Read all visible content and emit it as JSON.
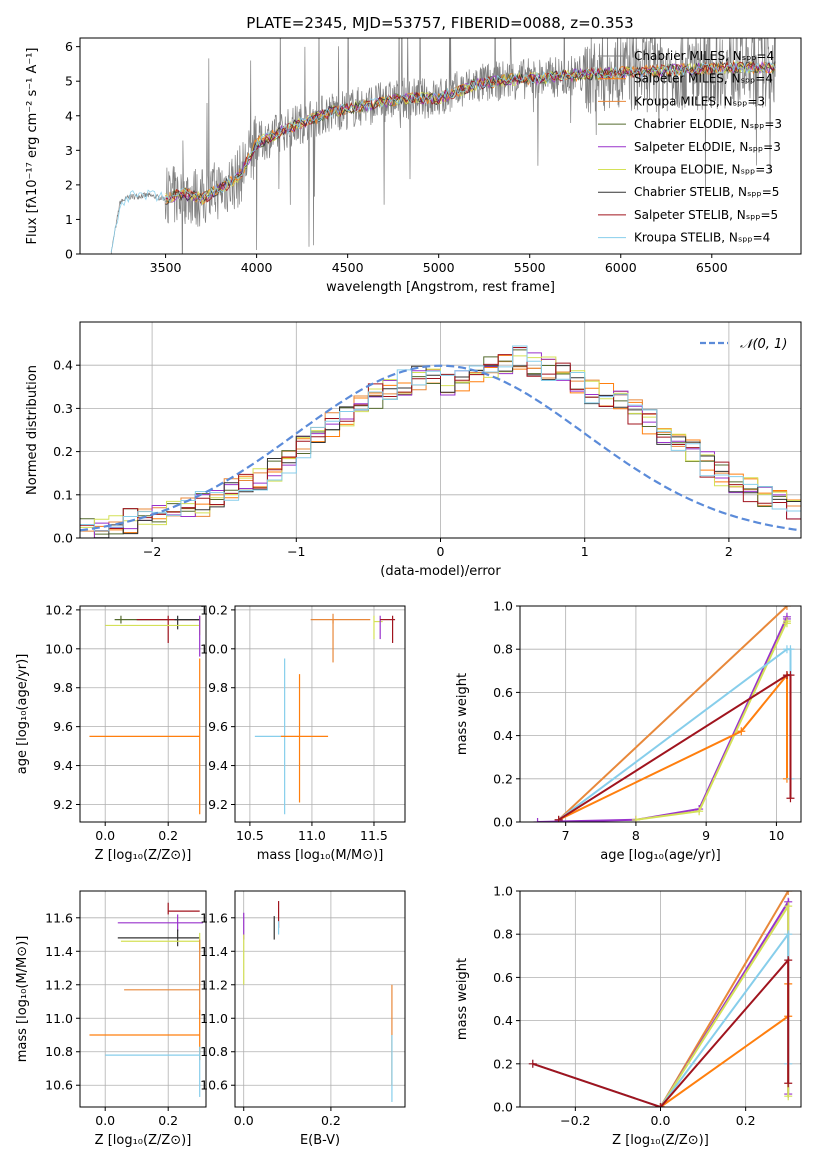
{
  "figure_title": "PLATE=2345, MJD=53757, FIBERID=0088, z=0.353",
  "series_colors": [
    "#808080",
    "#ff7f0e",
    "#e8883a",
    "#556b2f",
    "#9932cc",
    "#d4e157",
    "#333333",
    "#a0141e",
    "#87ceeb"
  ],
  "chart_data": [
    {
      "id": "spectrum",
      "type": "line",
      "xlabel": "wavelength [Angstrom, rest frame]",
      "ylabel": "Flux [fλ10⁻¹⁷ erg cm⁻² s⁻¹ A⁻¹]",
      "xlim": [
        3030,
        6990
      ],
      "ylim": [
        0,
        6.25
      ],
      "xticks": [
        3500,
        4000,
        4500,
        5000,
        5500,
        6000,
        6500
      ],
      "yticks": [
        0,
        1,
        2,
        3,
        4,
        5,
        6
      ],
      "grid": false,
      "legend": "top-right",
      "data_continuum_x": [
        3200,
        3250,
        3300,
        3400,
        3500,
        3600,
        3700,
        3800,
        3900,
        4000,
        4200,
        4400,
        4600,
        4800,
        5000,
        5200,
        5400,
        5600,
        5800,
        6000,
        6200,
        6400,
        6600,
        6800
      ],
      "data_continuum_y": [
        0,
        1.5,
        1.65,
        1.7,
        1.6,
        1.75,
        1.6,
        1.9,
        2.2,
        3.2,
        3.7,
        4.1,
        4.3,
        4.5,
        4.5,
        4.9,
        5.05,
        5.1,
        5.2,
        5.25,
        5.3,
        5.35,
        5.4,
        5.4
      ],
      "series": [
        {
          "name": "Chabrier MILES, Nₛₚₚ=4"
        },
        {
          "name": "Salpeter MILES, Nₛₚₚ=4"
        },
        {
          "name": "Kroupa MILES, Nₛₚₚ=3"
        },
        {
          "name": "Chabrier ELODIE, Nₛₚₚ=3"
        },
        {
          "name": "Salpeter ELODIE, Nₛₚₚ=3"
        },
        {
          "name": "Kroupa ELODIE, Nₛₚₚ=3"
        },
        {
          "name": "Chabrier STELIB, Nₛₚₚ=5"
        },
        {
          "name": "Salpeter STELIB, Nₛₚₚ=5"
        },
        {
          "name": "Kroupa STELIB, Nₛₚₚ=4"
        }
      ]
    },
    {
      "id": "residuals",
      "type": "line",
      "xlabel": "(data-model)/error",
      "ylabel": "Normed distribution",
      "xlim": [
        -2.5,
        2.5
      ],
      "ylim": [
        0,
        0.5
      ],
      "xticks": [
        -2,
        -1,
        0,
        1,
        2
      ],
      "yticks": [
        0.0,
        0.1,
        0.2,
        0.3,
        0.4
      ],
      "grid": true,
      "legend": "top-right",
      "legend_label": "𝒩(0, 1)",
      "bin_width": 0.1,
      "hist_base": [
        0.02,
        0.03,
        0.03,
        0.04,
        0.04,
        0.05,
        0.06,
        0.07,
        0.08,
        0.09,
        0.11,
        0.13,
        0.14,
        0.16,
        0.18,
        0.21,
        0.23,
        0.26,
        0.28,
        0.31,
        0.33,
        0.35,
        0.36,
        0.37,
        0.37,
        0.36,
        0.37,
        0.38,
        0.39,
        0.41,
        0.42,
        0.4,
        0.39,
        0.38,
        0.36,
        0.34,
        0.33,
        0.31,
        0.29,
        0.27,
        0.24,
        0.22,
        0.2,
        0.17,
        0.15,
        0.13,
        0.11,
        0.09,
        0.08,
        0.07
      ]
    },
    {
      "id": "age-vs-Z",
      "type": "scatter",
      "xlabel": "Z [log₁₀(Z/Z⊙)]",
      "ylabel": "age  [log₁₀(age/yr)]",
      "xlim": [
        -0.08,
        0.32
      ],
      "ylim": [
        9.11,
        10.22
      ],
      "xticks": [
        0.0,
        0.2
      ],
      "yticks": [
        9.2,
        9.4,
        9.6,
        9.8,
        10.0,
        10.2
      ],
      "grid": true,
      "points": [
        {
          "x": 0.05,
          "y": 10.15,
          "xerr": [
            0.02,
            0.25
          ],
          "yerr": [
            0.02,
            0.02
          ],
          "c": 3
        },
        {
          "x": 0.2,
          "y": 10.15,
          "xerr": [
            0.1,
            0.1
          ],
          "yerr": [
            0.12,
            0.02
          ],
          "c": 7
        },
        {
          "x": 0.23,
          "y": 10.15,
          "xerr": [
            0.01,
            0.07
          ],
          "yerr": [
            0.05,
            0.02
          ],
          "c": 6
        },
        {
          "x": 0.3,
          "y": 10.12,
          "xerr": [
            0.3,
            0.0
          ],
          "yerr": [
            0.05,
            0.05
          ],
          "c": 5
        },
        {
          "x": 0.3,
          "y": 9.55,
          "xerr": [
            0.35,
            0.0
          ],
          "yerr": [
            0.4,
            0.4
          ],
          "c": 1
        },
        {
          "x": 0.3,
          "y": 10.16,
          "xerr": [
            0.0,
            0.0
          ],
          "yerr": [
            0.2,
            0.01
          ],
          "c": 4
        }
      ]
    },
    {
      "id": "age-vs-mass",
      "type": "scatter",
      "xlabel": "mass [log₁₀(M/M⊙)]",
      "ylabel": "",
      "xlim": [
        10.38,
        11.75
      ],
      "ylim": [
        9.11,
        10.22
      ],
      "xticks": [
        10.5,
        11.0,
        11.5
      ],
      "yticks": [
        9.2,
        9.4,
        9.6,
        9.8,
        10.0,
        10.2
      ],
      "grid": true,
      "points": [
        {
          "x": 11.17,
          "y": 10.15,
          "xerr": [
            0.18,
            0.3
          ],
          "yerr": [
            0.02,
            0.03
          ],
          "c": 2
        },
        {
          "x": 11.17,
          "y": 10.15,
          "xerr": [
            0.0,
            0.0
          ],
          "yerr": [
            0.22,
            0.0
          ],
          "c": 2
        },
        {
          "x": 11.5,
          "y": 10.14,
          "xerr": [
            0.0,
            0.07
          ],
          "yerr": [
            0.09,
            0.03
          ],
          "c": 5
        },
        {
          "x": 11.55,
          "y": 10.14,
          "xerr": [
            0.0,
            0.0
          ],
          "yerr": [
            0.09,
            0.03
          ],
          "c": 4
        },
        {
          "x": 11.65,
          "y": 10.15,
          "xerr": [
            0.1,
            0.02
          ],
          "yerr": [
            0.12,
            0.02
          ],
          "c": 7
        },
        {
          "x": 10.78,
          "y": 9.55,
          "xerr": [
            0.24,
            0.0
          ],
          "yerr": [
            0.4,
            0.4
          ],
          "c": 8
        },
        {
          "x": 10.9,
          "y": 9.55,
          "xerr": [
            0.15,
            0.23
          ],
          "yerr": [
            0.34,
            0.32
          ],
          "c": 1
        }
      ]
    },
    {
      "id": "weight-vs-age",
      "type": "line",
      "xlabel": "age  [log₁₀(age/yr)]",
      "ylabel": "mass weight",
      "xlim": [
        6.35,
        10.35
      ],
      "ylim": [
        0,
        1.0
      ],
      "xticks": [
        7,
        8,
        9,
        10
      ],
      "yticks": [
        0.0,
        0.2,
        0.4,
        0.6,
        0.8,
        1.0
      ],
      "grid": true,
      "lines": [
        {
          "c": 2,
          "x": [
            6.9,
            10.15
          ],
          "y": [
            0.01,
            1.0
          ]
        },
        {
          "c": 4,
          "x": [
            6.6,
            8.0,
            8.9,
            10.15,
            10.15
          ],
          "y": [
            0.0,
            0.01,
            0.06,
            0.95,
            0.94
          ]
        },
        {
          "c": 5,
          "x": [
            8.0,
            8.9,
            10.15,
            10.15
          ],
          "y": [
            0.01,
            0.05,
            0.93,
            0.92
          ]
        },
        {
          "c": 1,
          "x": [
            6.9,
            9.5,
            10.15,
            10.15
          ],
          "y": [
            0.01,
            0.42,
            0.68,
            0.2
          ]
        },
        {
          "c": 8,
          "x": [
            6.9,
            10.15,
            10.2,
            10.2
          ],
          "y": [
            0.01,
            0.8,
            0.8,
            0.2
          ]
        },
        {
          "c": 7,
          "x": [
            6.9,
            10.15,
            10.2,
            10.2
          ],
          "y": [
            0.01,
            0.68,
            0.68,
            0.11
          ]
        }
      ]
    },
    {
      "id": "mass-vs-Z",
      "type": "scatter",
      "xlabel": "Z [log₁₀(Z/Z⊙)]",
      "ylabel": "mass [log₁₀(M/M⊙)]",
      "xlim": [
        -0.08,
        0.32
      ],
      "ylim": [
        10.47,
        11.76
      ],
      "xticks": [
        0.0,
        0.2
      ],
      "yticks": [
        10.6,
        10.8,
        11.0,
        11.2,
        11.4,
        11.6
      ],
      "grid": true,
      "points": [
        {
          "x": 0.2,
          "y": 11.64,
          "xerr": [
            0.0,
            0.1
          ],
          "yerr": [
            0.02,
            0.05
          ],
          "c": 7
        },
        {
          "x": 0.23,
          "y": 11.57,
          "xerr": [
            0.19,
            0.08
          ],
          "yerr": [
            0.05,
            0.05
          ],
          "c": 4
        },
        {
          "x": 0.23,
          "y": 11.48,
          "xerr": [
            0.19,
            0.07
          ],
          "yerr": [
            0.05,
            0.05
          ],
          "c": 6
        },
        {
          "x": 0.3,
          "y": 11.46,
          "xerr": [
            0.25,
            0.0
          ],
          "yerr": [
            0.05,
            0.05
          ],
          "c": 5
        },
        {
          "x": 0.3,
          "y": 11.17,
          "xerr": [
            0.24,
            0.0
          ],
          "yerr": [
            0.15,
            0.3
          ],
          "c": 2
        },
        {
          "x": 0.3,
          "y": 10.9,
          "xerr": [
            0.35,
            0.0
          ],
          "yerr": [
            0.15,
            0.15
          ],
          "c": 1
        },
        {
          "x": 0.3,
          "y": 10.78,
          "xerr": [
            0.3,
            0.0
          ],
          "yerr": [
            0.25,
            0.05
          ],
          "c": 8
        }
      ]
    },
    {
      "id": "mass-vs-EBV",
      "type": "scatter",
      "xlabel": "E(B-V)",
      "ylabel": "",
      "xlim": [
        -0.02,
        0.37
      ],
      "ylim": [
        10.47,
        11.76
      ],
      "xticks": [
        0.0,
        0.2
      ],
      "yticks": [
        10.6,
        10.8,
        11.0,
        11.2,
        11.4,
        11.6
      ],
      "grid": true,
      "points": [
        {
          "x": 0.0,
          "y": 11.55,
          "xerr": [
            0.0,
            0.0
          ],
          "yerr": [
            0.08,
            0.08
          ],
          "c": 4
        },
        {
          "x": 0.0,
          "y": 11.4,
          "xerr": [
            0.0,
            0.0
          ],
          "yerr": [
            0.2,
            0.1
          ],
          "c": 5
        },
        {
          "x": 0.07,
          "y": 11.55,
          "xerr": [
            0.0,
            0.0
          ],
          "yerr": [
            0.08,
            0.06
          ],
          "c": 6
        },
        {
          "x": 0.08,
          "y": 11.6,
          "xerr": [
            0.0,
            0.0
          ],
          "yerr": [
            0.06,
            0.1
          ],
          "c": 7
        },
        {
          "x": 0.08,
          "y": 11.55,
          "xerr": [
            0.0,
            0.0
          ],
          "yerr": [
            0.05,
            0.03
          ],
          "c": 8
        },
        {
          "x": 0.34,
          "y": 10.9,
          "xerr": [
            0.0,
            0.0
          ],
          "yerr": [
            0.3,
            0.3
          ],
          "c": 2
        },
        {
          "x": 0.34,
          "y": 10.7,
          "xerr": [
            0.0,
            0.0
          ],
          "yerr": [
            0.2,
            0.2
          ],
          "c": 8
        }
      ]
    },
    {
      "id": "weight-vs-Z",
      "type": "line",
      "xlabel": "Z [log₁₀(Z/Z⊙)]",
      "ylabel": "mass weight",
      "xlim": [
        -0.33,
        0.33
      ],
      "ylim": [
        0,
        1.0
      ],
      "xticks": [
        -0.2,
        0.0,
        0.2
      ],
      "yticks": [
        0.0,
        0.2,
        0.4,
        0.6,
        0.8,
        1.0
      ],
      "grid": true,
      "lines": [
        {
          "c": 2,
          "x": [
            0.0,
            0.3
          ],
          "y": [
            0.0,
            1.0
          ]
        },
        {
          "c": 4,
          "x": [
            0.0,
            0.3,
            0.3
          ],
          "y": [
            0.0,
            0.95,
            0.06
          ]
        },
        {
          "c": 5,
          "x": [
            0.0,
            0.3,
            0.3
          ],
          "y": [
            0.0,
            0.93,
            0.05
          ]
        },
        {
          "c": 8,
          "x": [
            -0.3,
            0.0,
            0.3,
            0.3
          ],
          "y": [
            0.2,
            0.0,
            0.8,
            0.2
          ]
        },
        {
          "c": 1,
          "x": [
            0.0,
            0.3,
            0.3
          ],
          "y": [
            0.0,
            0.42,
            0.57
          ]
        },
        {
          "c": 7,
          "x": [
            -0.3,
            0.0,
            0.3,
            0.3
          ],
          "y": [
            0.2,
            0.0,
            0.68,
            0.11
          ]
        }
      ]
    }
  ]
}
